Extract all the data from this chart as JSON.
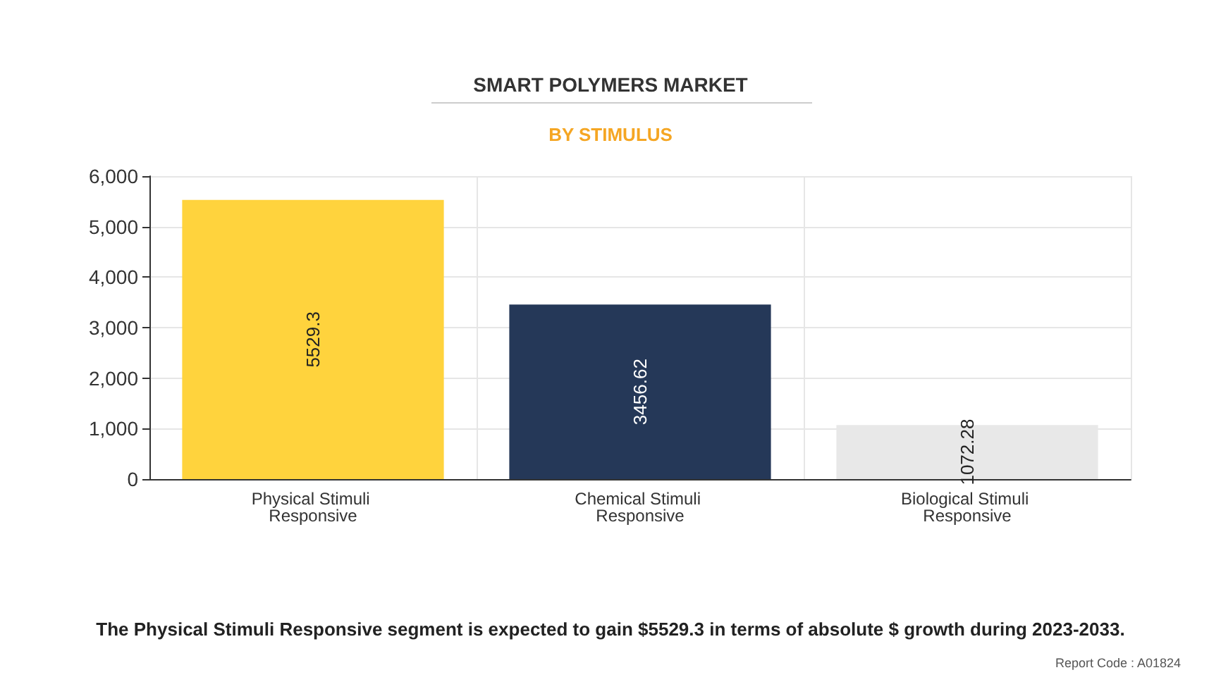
{
  "chart_data": {
    "type": "bar",
    "title": "SMART POLYMERS MARKET",
    "subtitle": "BY STIMULUS",
    "categories": [
      "Physical Stimuli Responsive",
      "Chemical Stimuli Responsive",
      "Biological Stimuli Responsive"
    ],
    "values": [
      5529.3,
      3456.62,
      1072.28
    ],
    "colors": [
      "#ffd33d",
      "#253858",
      "#e8e8e8"
    ],
    "ylim": [
      0,
      6000
    ],
    "yticks": [
      {
        "value": 0,
        "label": "0"
      },
      {
        "value": 1000,
        "label": "1,000"
      },
      {
        "value": 2000,
        "label": "2,000"
      },
      {
        "value": 3000,
        "label": "3,000"
      },
      {
        "value": 4000,
        "label": "4,000"
      },
      {
        "value": 5000,
        "label": "5,000"
      },
      {
        "value": 6000,
        "label": "6,000"
      }
    ],
    "grid": true,
    "data_labels": true,
    "annotations": [
      "The Physical Stimuli Responsive segment is expected to gain $5529.3 in terms of absolute $ growth during 2023-2033.",
      "Report Code : A01824"
    ]
  }
}
